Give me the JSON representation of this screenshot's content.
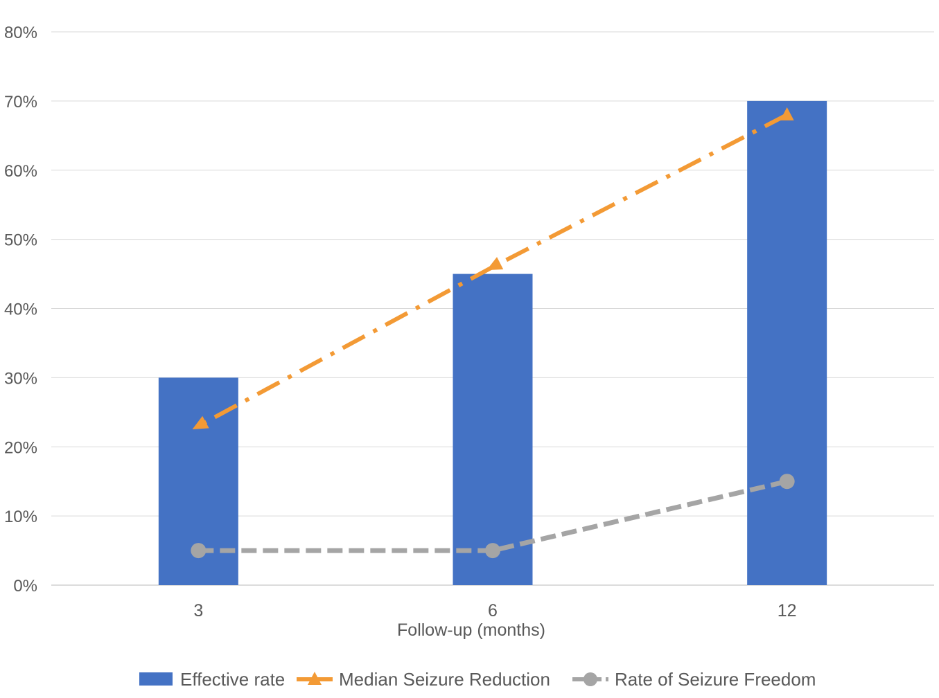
{
  "chart_data": {
    "type": "bar",
    "categories": [
      "3",
      "6",
      "12"
    ],
    "xlabel": "Follow-up (months)",
    "ylabel": "",
    "ylim": [
      0,
      0.8
    ],
    "yticks": [
      0,
      0.1,
      0.2,
      0.3,
      0.4,
      0.5,
      0.6,
      0.7,
      0.8
    ],
    "ytick_labels": [
      "0%",
      "10%",
      "20%",
      "30%",
      "40%",
      "50%",
      "60%",
      "70%",
      "80%"
    ],
    "grid": true,
    "legend_position": "bottom",
    "series": [
      {
        "name": "Effective rate",
        "type": "bar",
        "values": [
          0.3,
          0.45,
          0.7
        ],
        "color": "#4472C4"
      },
      {
        "name": "Median Seizure Reduction",
        "type": "line",
        "line_style": "dash-dot",
        "marker": "triangle",
        "values": [
          0.23,
          0.46,
          0.68
        ],
        "color": "#F39A35"
      },
      {
        "name": "Rate of Seizure Freedom",
        "type": "line",
        "line_style": "dashed",
        "marker": "circle",
        "values": [
          0.05,
          0.05,
          0.15
        ],
        "color": "#A5A5A5"
      }
    ]
  }
}
